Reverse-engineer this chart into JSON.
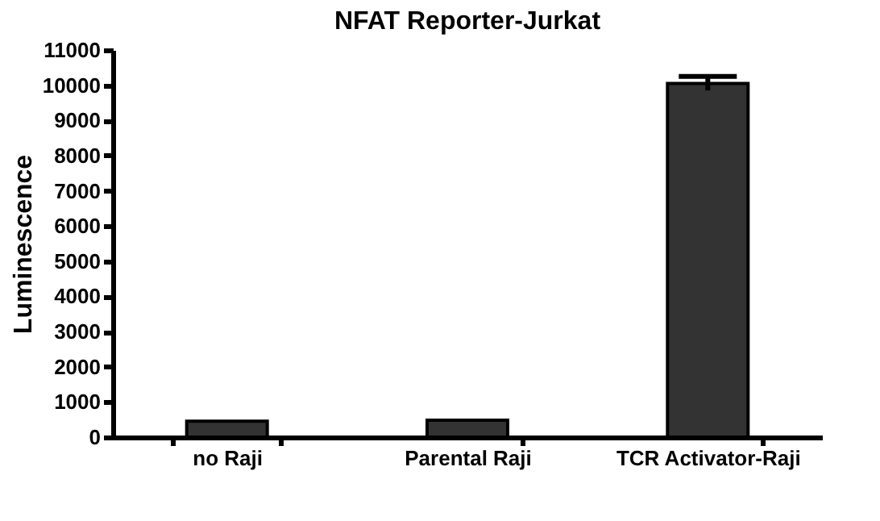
{
  "chart_data": {
    "type": "bar",
    "title": "NFAT Reporter-Jurkat",
    "ylabel": "Luminescence",
    "categories": [
      "no Raji",
      "Parental Raji",
      "TCR Activator-Raji"
    ],
    "values": [
      450,
      480,
      10050
    ],
    "errors": [
      null,
      null,
      200
    ],
    "color": "#333333",
    "ylim": [
      0,
      11000
    ],
    "yticks": [
      0,
      1000,
      2000,
      3000,
      4000,
      5000,
      6000,
      7000,
      8000,
      9000,
      10000,
      11000
    ],
    "grid": false
  }
}
